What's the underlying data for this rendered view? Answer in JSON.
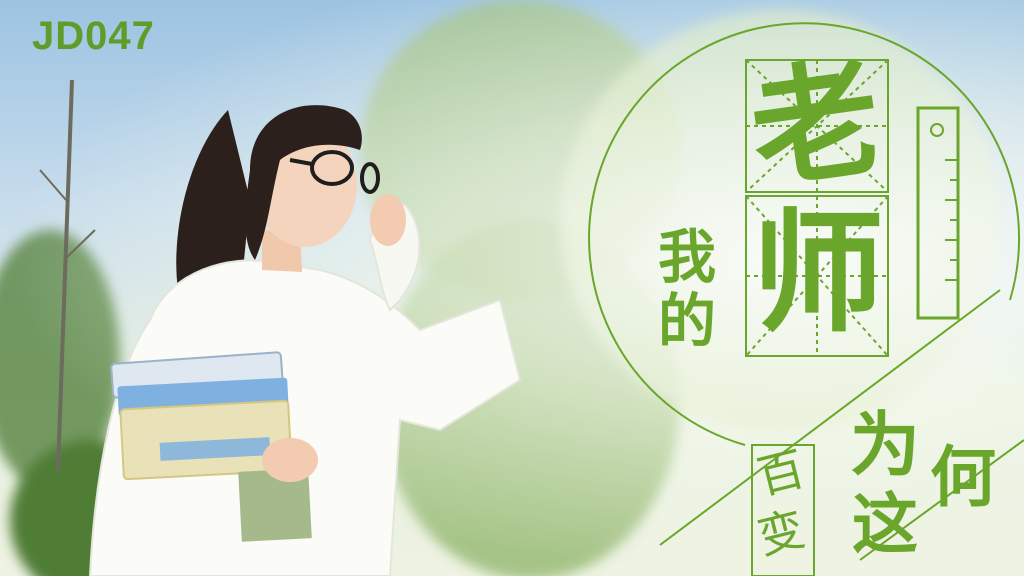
{
  "poster": {
    "code": "JD047",
    "title": {
      "wo": "我",
      "de": "的",
      "lao": "老",
      "shi": "师",
      "wei": "为",
      "he": "何",
      "zhe": "这",
      "bai": "百",
      "bian": "变"
    }
  },
  "colors": {
    "accent": "#6aa62c",
    "sky": "#9cc3e2",
    "shirt": "#ffffff",
    "hair": "#2b201c"
  }
}
